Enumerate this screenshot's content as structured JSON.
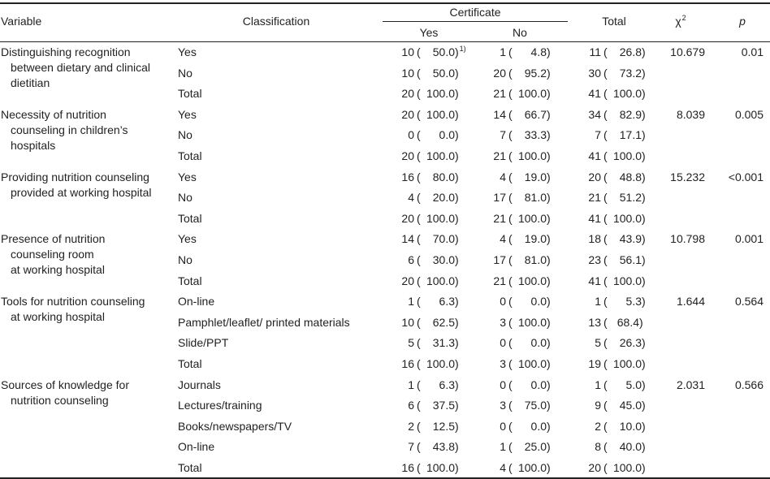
{
  "header": {
    "variable": "Variable",
    "classification": "Classification",
    "certificate": "Certificate",
    "yes": "Yes",
    "no": "No",
    "total": "Total",
    "chi_symbol": "χ",
    "chi_sup": "2",
    "p": "p"
  },
  "footnote_marker": "1)",
  "groups": [
    {
      "variable": [
        "Distinguishing recognition",
        "between dietary and clinical",
        "dietitian"
      ],
      "chi": "10.679",
      "p": "0.01",
      "rows": [
        {
          "label": "Yes",
          "yes_n": "10",
          "yes_pct": "50.0",
          "no_n": "1",
          "no_pct": "4.8",
          "tot_n": "11",
          "tot_pct": "26.8",
          "marker": true
        },
        {
          "label": "No",
          "yes_n": "10",
          "yes_pct": "50.0",
          "no_n": "20",
          "no_pct": "95.2",
          "tot_n": "30",
          "tot_pct": "73.2"
        },
        {
          "label": "Total",
          "yes_n": "20",
          "yes_pct": "100.0",
          "no_n": "21",
          "no_pct": "100.0",
          "tot_n": "41",
          "tot_pct": "100.0"
        }
      ]
    },
    {
      "variable": [
        "Necessity of nutrition",
        "counseling in children’s",
        "hospitals"
      ],
      "chi": "8.039",
      "p": "0.005",
      "rows": [
        {
          "label": "Yes",
          "yes_n": "20",
          "yes_pct": "100.0",
          "no_n": "14",
          "no_pct": "66.7",
          "tot_n": "34",
          "tot_pct": "82.9"
        },
        {
          "label": "No",
          "yes_n": "0",
          "yes_pct": "0.0",
          "no_n": "7",
          "no_pct": "33.3",
          "tot_n": "7",
          "tot_pct": "17.1"
        },
        {
          "label": "Total",
          "yes_n": "20",
          "yes_pct": "100.0",
          "no_n": "21",
          "no_pct": "100.0",
          "tot_n": "41",
          "tot_pct": "100.0"
        }
      ]
    },
    {
      "variable": [
        "Providing nutrition counseling",
        "provided at working hospital"
      ],
      "chi": "15.232",
      "p": "<0.001",
      "rows": [
        {
          "label": "Yes",
          "yes_n": "16",
          "yes_pct": "80.0",
          "no_n": "4",
          "no_pct": "19.0",
          "tot_n": "20",
          "tot_pct": "48.8"
        },
        {
          "label": "No",
          "yes_n": "4",
          "yes_pct": "20.0",
          "no_n": "17",
          "no_pct": "81.0",
          "tot_n": "21",
          "tot_pct": "51.2"
        },
        {
          "label": "Total",
          "yes_n": "20",
          "yes_pct": "100.0",
          "no_n": "21",
          "no_pct": "100.0",
          "tot_n": "41",
          "tot_pct": "100.0"
        }
      ]
    },
    {
      "variable": [
        "Presence of nutrition",
        "counseling room",
        "at working hospital"
      ],
      "chi": "10.798",
      "p": "0.001",
      "rows": [
        {
          "label": "Yes",
          "yes_n": "14",
          "yes_pct": "70.0",
          "no_n": "4",
          "no_pct": "19.0",
          "tot_n": "18",
          "tot_pct": "43.9"
        },
        {
          "label": "No",
          "yes_n": "6",
          "yes_pct": "30.0",
          "no_n": "17",
          "no_pct": "81.0",
          "tot_n": "23",
          "tot_pct": "56.1"
        },
        {
          "label": "Total",
          "yes_n": "20",
          "yes_pct": "100.0",
          "no_n": "21",
          "no_pct": "100.0",
          "tot_n": "41",
          "tot_pct": "100.0"
        }
      ]
    },
    {
      "variable": [
        "Tools for nutrition counseling",
        "at working hospital"
      ],
      "chi": "1.644",
      "p": "0.564",
      "rows": [
        {
          "label": "On-line",
          "yes_n": "1",
          "yes_pct": "6.3",
          "no_n": "0",
          "no_pct": "0.0",
          "tot_n": "1",
          "tot_pct": "5.3"
        },
        {
          "label": "Pamphlet/leaflet/ printed materials",
          "yes_n": "10",
          "yes_pct": "62.5",
          "no_n": "3",
          "no_pct": "100.0",
          "tot_n": "13",
          "tot_pct": "68.4",
          "tight_total": true
        },
        {
          "label": "Slide/PPT",
          "yes_n": "5",
          "yes_pct": "31.3",
          "no_n": "0",
          "no_pct": "0.0",
          "tot_n": "5",
          "tot_pct": "26.3"
        },
        {
          "label": "Total",
          "yes_n": "16",
          "yes_pct": "100.0",
          "no_n": "3",
          "no_pct": "100.0",
          "tot_n": "19",
          "tot_pct": "100.0"
        }
      ]
    },
    {
      "variable": [
        "Sources of knowledge for",
        "nutrition counseling"
      ],
      "chi": "2.031",
      "p": "0.566",
      "rows": [
        {
          "label": "Journals",
          "yes_n": "1",
          "yes_pct": "6.3",
          "no_n": "0",
          "no_pct": "0.0",
          "tot_n": "1",
          "tot_pct": "5.0"
        },
        {
          "label": "Lectures/training",
          "yes_n": "6",
          "yes_pct": "37.5",
          "no_n": "3",
          "no_pct": "75.0",
          "tot_n": "9",
          "tot_pct": "45.0"
        },
        {
          "label": "Books/newspapers/TV",
          "yes_n": "2",
          "yes_pct": "12.5",
          "no_n": "0",
          "no_pct": "0.0",
          "tot_n": "2",
          "tot_pct": "10.0"
        },
        {
          "label": "On-line",
          "yes_n": "7",
          "yes_pct": "43.8",
          "no_n": "1",
          "no_pct": "25.0",
          "tot_n": "8",
          "tot_pct": "40.0"
        },
        {
          "label": "Total",
          "yes_n": "16",
          "yes_pct": "100.0",
          "no_n": "4",
          "no_pct": "100.0",
          "tot_n": "20",
          "tot_pct": "100.0"
        }
      ]
    }
  ]
}
